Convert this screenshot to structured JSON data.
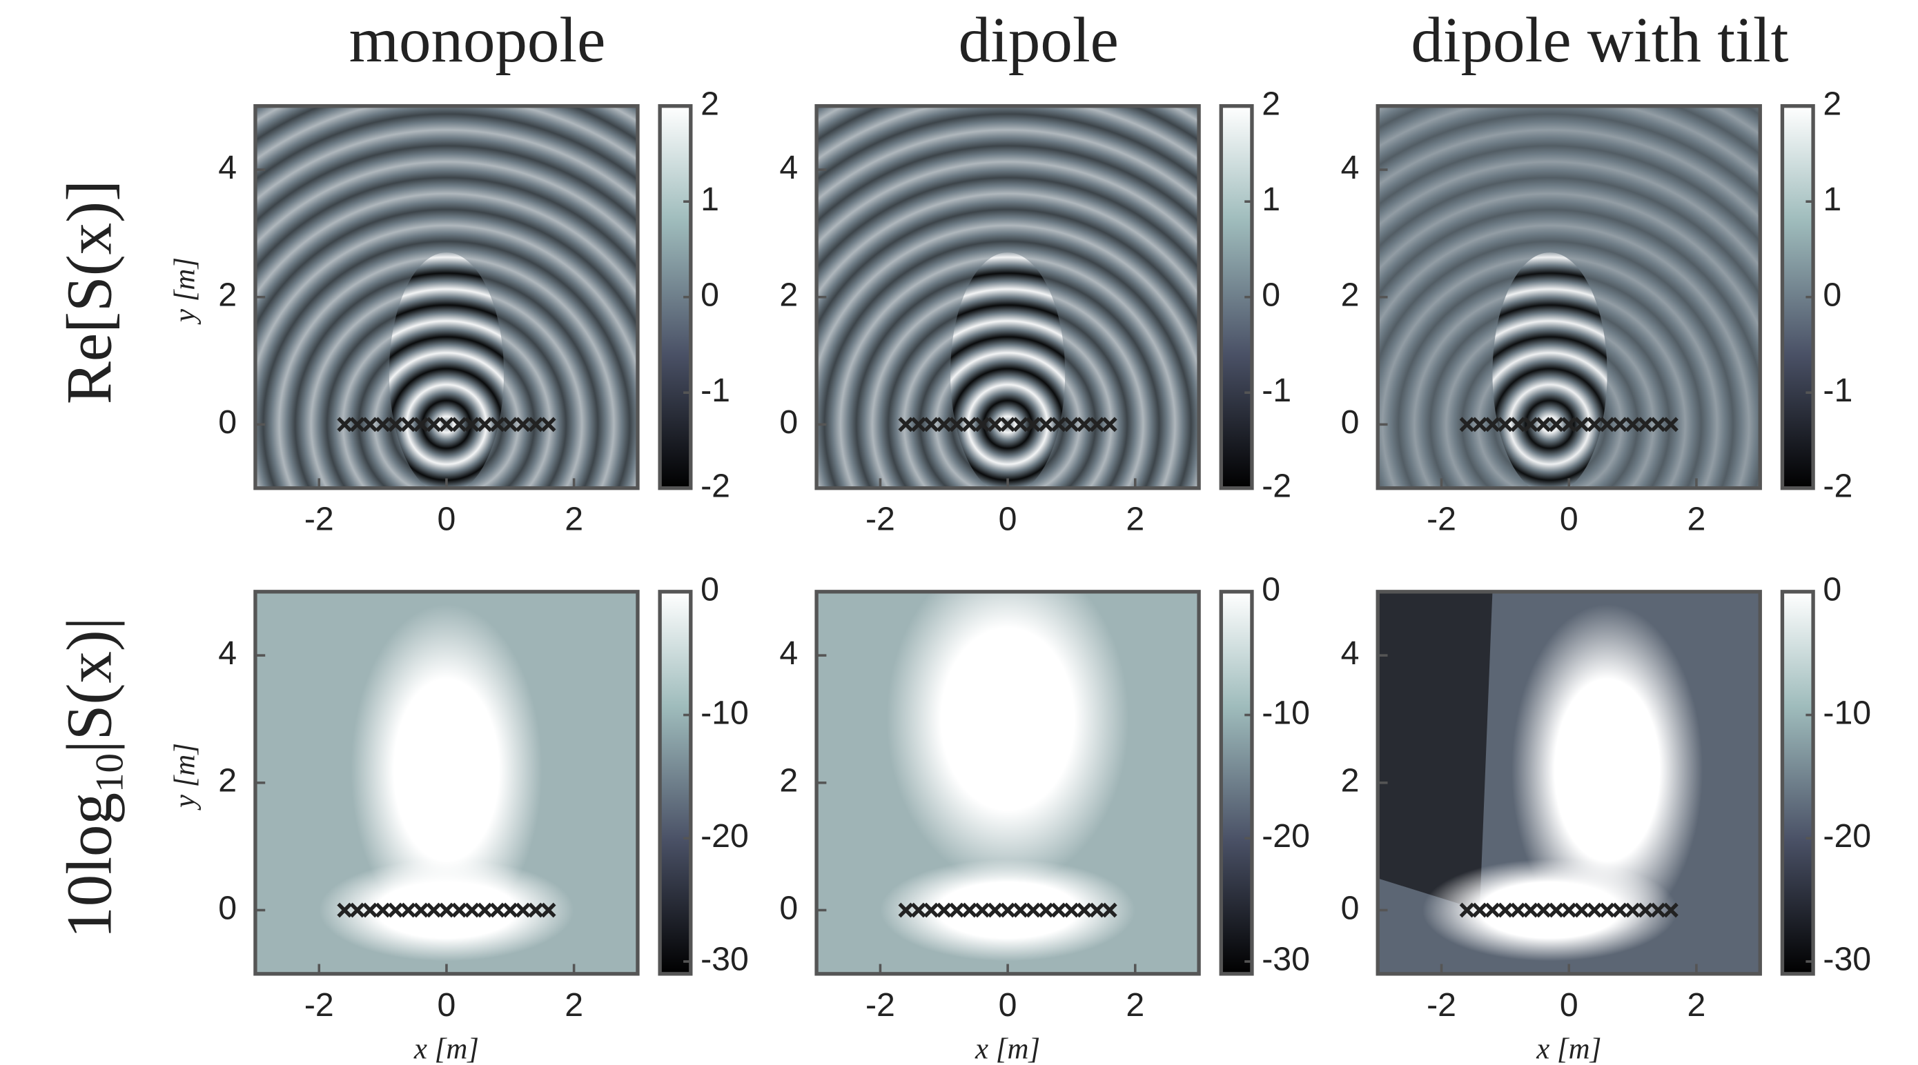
{
  "chart_data": [
    {
      "type": "heatmap",
      "title": "monopole",
      "row_label": "Re[S(x)]",
      "ylabel": "y [m]",
      "xlim": [
        -3,
        3
      ],
      "ylim": [
        -1,
        5
      ],
      "xticks": [
        -2,
        0,
        2
      ],
      "yticks": [
        0,
        2,
        4
      ],
      "clim": [
        -2,
        2
      ],
      "cticks": [
        -2,
        -1,
        0,
        1,
        2
      ],
      "points": {
        "x": [
          -1.6,
          -1.4,
          -1.2,
          -1,
          -0.8,
          -0.6,
          -0.4,
          -0.2,
          0,
          0.2,
          0.4,
          0.6,
          0.8,
          1,
          1.2,
          1.4,
          1.6
        ],
        "y": [
          0,
          0,
          0,
          0,
          0,
          0,
          0,
          0,
          0,
          0,
          0,
          0,
          0,
          0,
          0,
          0,
          0
        ]
      }
    },
    {
      "type": "heatmap",
      "title": "dipole",
      "xlim": [
        -3,
        3
      ],
      "ylim": [
        -1,
        5
      ],
      "xticks": [
        -2,
        0,
        2
      ],
      "yticks": [
        0,
        2,
        4
      ],
      "clim": [
        -2,
        2
      ],
      "cticks": [
        -2,
        -1,
        0,
        1,
        2
      ],
      "points": {
        "x": [
          -1.6,
          -1.4,
          -1.2,
          -1,
          -0.8,
          -0.6,
          -0.4,
          -0.2,
          0,
          0.2,
          0.4,
          0.6,
          0.8,
          1,
          1.2,
          1.4,
          1.6
        ],
        "y": [
          0,
          0,
          0,
          0,
          0,
          0,
          0,
          0,
          0,
          0,
          0,
          0,
          0,
          0,
          0,
          0,
          0
        ]
      }
    },
    {
      "type": "heatmap",
      "title": "dipole with tilt",
      "xlim": [
        -3,
        3
      ],
      "ylim": [
        -1,
        5
      ],
      "xticks": [
        -2,
        0,
        2
      ],
      "yticks": [
        0,
        2,
        4
      ],
      "clim": [
        -2,
        2
      ],
      "cticks": [
        -2,
        -1,
        0,
        1,
        2
      ],
      "points": {
        "x": [
          -1.6,
          -1.4,
          -1.2,
          -1,
          -0.8,
          -0.6,
          -0.4,
          -0.2,
          0,
          0.2,
          0.4,
          0.6,
          0.8,
          1,
          1.2,
          1.4,
          1.6
        ],
        "y": [
          0,
          0,
          0,
          0,
          0,
          0,
          0,
          0,
          0,
          0,
          0,
          0,
          0,
          0,
          0,
          0,
          0
        ]
      }
    },
    {
      "type": "heatmap",
      "row_label": [
        "10log",
        "10",
        "|S(x)|"
      ],
      "ylabel": "y [m]",
      "xlabel": "x [m]",
      "xlim": [
        -3,
        3
      ],
      "ylim": [
        -1,
        5
      ],
      "xticks": [
        -2,
        0,
        2
      ],
      "yticks": [
        0,
        2,
        4
      ],
      "clim": [
        -31,
        0
      ],
      "cticks": [
        -30,
        -20,
        -10,
        0
      ],
      "points": {
        "x": [
          -1.6,
          -1.4,
          -1.2,
          -1,
          -0.8,
          -0.6,
          -0.4,
          -0.2,
          0,
          0.2,
          0.4,
          0.6,
          0.8,
          1,
          1.2,
          1.4,
          1.6
        ],
        "y": [
          0,
          0,
          0,
          0,
          0,
          0,
          0,
          0,
          0,
          0,
          0,
          0,
          0,
          0,
          0,
          0,
          0
        ]
      }
    },
    {
      "type": "heatmap",
      "xlabel": "x [m]",
      "xlim": [
        -3,
        3
      ],
      "ylim": [
        -1,
        5
      ],
      "xticks": [
        -2,
        0,
        2
      ],
      "yticks": [
        0,
        2,
        4
      ],
      "clim": [
        -31,
        0
      ],
      "cticks": [
        -30,
        -20,
        -10,
        0
      ],
      "points": {
        "x": [
          -1.6,
          -1.4,
          -1.2,
          -1,
          -0.8,
          -0.6,
          -0.4,
          -0.2,
          0,
          0.2,
          0.4,
          0.6,
          0.8,
          1,
          1.2,
          1.4,
          1.6
        ],
        "y": [
          0,
          0,
          0,
          0,
          0,
          0,
          0,
          0,
          0,
          0,
          0,
          0,
          0,
          0,
          0,
          0,
          0
        ]
      }
    },
    {
      "type": "heatmap",
      "xlabel": "x [m]",
      "xlim": [
        -3,
        3
      ],
      "ylim": [
        -1,
        5
      ],
      "xticks": [
        -2,
        0,
        2
      ],
      "yticks": [
        0,
        2,
        4
      ],
      "clim": [
        -31,
        0
      ],
      "cticks": [
        -30,
        -20,
        -10,
        0
      ],
      "points": {
        "x": [
          -1.6,
          -1.4,
          -1.2,
          -1,
          -0.8,
          -0.6,
          -0.4,
          -0.2,
          0,
          0.2,
          0.4,
          0.6,
          0.8,
          1,
          1.2,
          1.4,
          1.6
        ],
        "y": [
          0,
          0,
          0,
          0,
          0,
          0,
          0,
          0,
          0,
          0,
          0,
          0,
          0,
          0,
          0,
          0,
          0
        ]
      }
    }
  ]
}
